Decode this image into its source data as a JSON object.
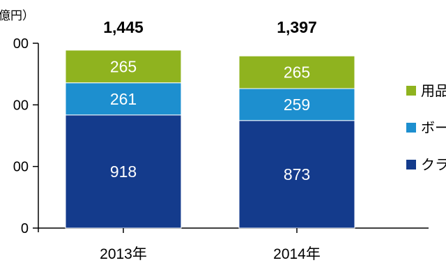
{
  "chart_data": {
    "type": "bar",
    "stacked": true,
    "unit_label": "億円）",
    "categories": [
      "2013年",
      "2014年"
    ],
    "series": [
      {
        "name": "クラ",
        "values": [
          918,
          873
        ],
        "color": "#143b8c"
      },
      {
        "name": "ボー",
        "values": [
          261,
          259
        ],
        "color": "#1d8fcf"
      },
      {
        "name": "用品",
        "values": [
          265,
          265
        ],
        "color": "#8fb31f"
      }
    ],
    "totals": [
      "1,445",
      "1,397"
    ],
    "value_labels": [
      [
        "918",
        "873"
      ],
      [
        "261",
        "259"
      ],
      [
        "265",
        "265"
      ]
    ],
    "yaxis_tick_labels": [
      "0",
      "00",
      "00",
      "00"
    ],
    "yaxis_tick_values": [
      0,
      500,
      1000,
      1500
    ],
    "ylim": [
      0,
      1500
    ],
    "grid": false,
    "legend_position": "right"
  }
}
